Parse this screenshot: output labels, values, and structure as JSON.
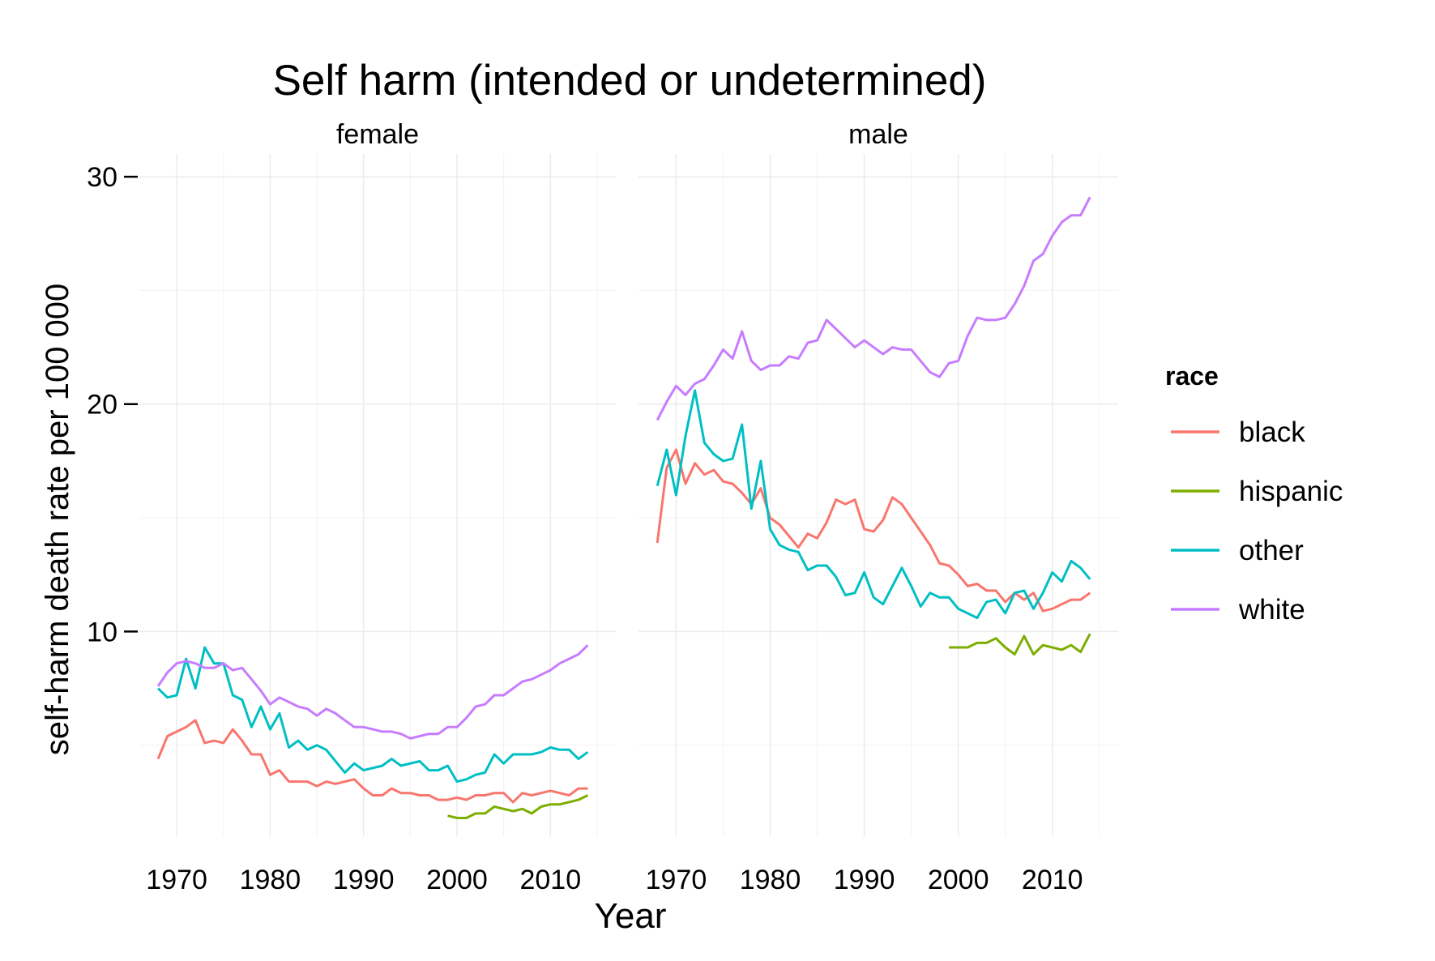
{
  "chart_data": {
    "type": "line",
    "title": "Self harm (intended or undetermined)",
    "xlabel": "Year",
    "ylabel": "self-harm death rate per 100 000",
    "xlim": [
      1966,
      2017
    ],
    "ylim": [
      1,
      31
    ],
    "x_ticks": [
      1970,
      1980,
      1990,
      2000,
      2010
    ],
    "x_tick_labels": [
      "1970",
      "1980",
      "1990",
      "2000",
      "2010"
    ],
    "y_ticks": [
      10,
      20,
      30
    ],
    "y_tick_labels": [
      "10",
      "20",
      "30"
    ],
    "grid": true,
    "legend": {
      "title": "race",
      "placement": "right",
      "entries": [
        {
          "key": "black",
          "label": "black",
          "color": "#F8766D"
        },
        {
          "key": "hispanic",
          "label": "hispanic",
          "color": "#7CAE00"
        },
        {
          "key": "other",
          "label": "other",
          "color": "#00BFC4"
        },
        {
          "key": "white",
          "label": "white",
          "color": "#C77CFF"
        }
      ]
    },
    "panels": [
      {
        "name": "female",
        "series": [
          {
            "key": "black",
            "x": [
              1968,
              1969,
              1970,
              1971,
              1972,
              1973,
              1974,
              1975,
              1976,
              1977,
              1978,
              1979,
              1980,
              1981,
              1982,
              1983,
              1984,
              1985,
              1986,
              1987,
              1988,
              1989,
              1990,
              1991,
              1992,
              1993,
              1994,
              1995,
              1996,
              1997,
              1998,
              1999,
              2000,
              2001,
              2002,
              2003,
              2004,
              2005,
              2006,
              2007,
              2008,
              2009,
              2010,
              2011,
              2012,
              2013,
              2014
            ],
            "values": [
              4.4,
              5.4,
              5.6,
              5.8,
              6.1,
              5.1,
              5.2,
              5.1,
              5.7,
              5.2,
              4.6,
              4.6,
              3.7,
              3.9,
              3.4,
              3.4,
              3.4,
              3.2,
              3.4,
              3.3,
              3.4,
              3.5,
              3.1,
              2.8,
              2.8,
              3.1,
              2.9,
              2.9,
              2.8,
              2.8,
              2.6,
              2.6,
              2.7,
              2.6,
              2.8,
              2.8,
              2.9,
              2.9,
              2.5,
              2.9,
              2.8,
              2.9,
              3.0,
              2.9,
              2.8,
              3.1,
              3.1
            ]
          },
          {
            "key": "hispanic",
            "x": [
              1999,
              2000,
              2001,
              2002,
              2003,
              2004,
              2005,
              2006,
              2007,
              2008,
              2009,
              2010,
              2011,
              2012,
              2013,
              2014
            ],
            "values": [
              1.9,
              1.8,
              1.8,
              2.0,
              2.0,
              2.3,
              2.2,
              2.1,
              2.2,
              2.0,
              2.3,
              2.4,
              2.4,
              2.5,
              2.6,
              2.8
            ]
          },
          {
            "key": "other",
            "x": [
              1968,
              1969,
              1970,
              1971,
              1972,
              1973,
              1974,
              1975,
              1976,
              1977,
              1978,
              1979,
              1980,
              1981,
              1982,
              1983,
              1984,
              1985,
              1986,
              1987,
              1988,
              1989,
              1990,
              1991,
              1992,
              1993,
              1994,
              1995,
              1996,
              1997,
              1998,
              1999,
              2000,
              2001,
              2002,
              2003,
              2004,
              2005,
              2006,
              2007,
              2008,
              2009,
              2010,
              2011,
              2012,
              2013,
              2014
            ],
            "values": [
              7.5,
              7.1,
              7.2,
              8.8,
              7.5,
              9.3,
              8.6,
              8.6,
              7.2,
              7.0,
              5.8,
              6.7,
              5.7,
              6.4,
              4.9,
              5.2,
              4.8,
              5.0,
              4.8,
              4.3,
              3.8,
              4.2,
              3.9,
              4.0,
              4.1,
              4.4,
              4.1,
              4.2,
              4.3,
              3.9,
              3.9,
              4.1,
              3.4,
              3.5,
              3.7,
              3.8,
              4.6,
              4.2,
              4.6,
              4.6,
              4.6,
              4.7,
              4.9,
              4.8,
              4.8,
              4.4,
              4.7
            ]
          },
          {
            "key": "white",
            "x": [
              1968,
              1969,
              1970,
              1971,
              1972,
              1973,
              1974,
              1975,
              1976,
              1977,
              1978,
              1979,
              1980,
              1981,
              1982,
              1983,
              1984,
              1985,
              1986,
              1987,
              1988,
              1989,
              1990,
              1991,
              1992,
              1993,
              1994,
              1995,
              1996,
              1997,
              1998,
              1999,
              2000,
              2001,
              2002,
              2003,
              2004,
              2005,
              2006,
              2007,
              2008,
              2009,
              2010,
              2011,
              2012,
              2013,
              2014
            ],
            "values": [
              7.6,
              8.2,
              8.6,
              8.7,
              8.6,
              8.4,
              8.4,
              8.6,
              8.3,
              8.4,
              7.9,
              7.4,
              6.8,
              7.1,
              6.9,
              6.7,
              6.6,
              6.3,
              6.6,
              6.4,
              6.1,
              5.8,
              5.8,
              5.7,
              5.6,
              5.6,
              5.5,
              5.3,
              5.4,
              5.5,
              5.5,
              5.8,
              5.8,
              6.2,
              6.7,
              6.8,
              7.2,
              7.2,
              7.5,
              7.8,
              7.9,
              8.1,
              8.3,
              8.6,
              8.8,
              9.0,
              9.4
            ]
          }
        ]
      },
      {
        "name": "male",
        "series": [
          {
            "key": "black",
            "x": [
              1968,
              1969,
              1970,
              1971,
              1972,
              1973,
              1974,
              1975,
              1976,
              1977,
              1978,
              1979,
              1980,
              1981,
              1982,
              1983,
              1984,
              1985,
              1986,
              1987,
              1988,
              1989,
              1990,
              1991,
              1992,
              1993,
              1994,
              1995,
              1996,
              1997,
              1998,
              1999,
              2000,
              2001,
              2002,
              2003,
              2004,
              2005,
              2006,
              2007,
              2008,
              2009,
              2010,
              2011,
              2012,
              2013,
              2014
            ],
            "values": [
              13.9,
              17.2,
              18.0,
              16.5,
              17.4,
              16.9,
              17.1,
              16.6,
              16.5,
              16.1,
              15.6,
              16.3,
              15.0,
              14.7,
              14.2,
              13.7,
              14.3,
              14.1,
              14.8,
              15.8,
              15.6,
              15.8,
              14.5,
              14.4,
              14.9,
              15.9,
              15.6,
              15.0,
              14.4,
              13.8,
              13.0,
              12.9,
              12.5,
              12.0,
              12.1,
              11.8,
              11.8,
              11.3,
              11.7,
              11.4,
              11.7,
              10.9,
              11.0,
              11.2,
              11.4,
              11.4,
              11.7
            ]
          },
          {
            "key": "hispanic",
            "x": [
              1999,
              2000,
              2001,
              2002,
              2003,
              2004,
              2005,
              2006,
              2007,
              2008,
              2009,
              2010,
              2011,
              2012,
              2013,
              2014
            ],
            "values": [
              9.3,
              9.3,
              9.3,
              9.5,
              9.5,
              9.7,
              9.3,
              9.0,
              9.8,
              9.0,
              9.4,
              9.3,
              9.2,
              9.4,
              9.1,
              9.9
            ]
          },
          {
            "key": "other",
            "x": [
              1968,
              1969,
              1970,
              1971,
              1972,
              1973,
              1974,
              1975,
              1976,
              1977,
              1978,
              1979,
              1980,
              1981,
              1982,
              1983,
              1984,
              1985,
              1986,
              1987,
              1988,
              1989,
              1990,
              1991,
              1992,
              1993,
              1994,
              1995,
              1996,
              1997,
              1998,
              1999,
              2000,
              2001,
              2002,
              2003,
              2004,
              2005,
              2006,
              2007,
              2008,
              2009,
              2010,
              2011,
              2012,
              2013,
              2014
            ],
            "values": [
              16.4,
              18.0,
              16.0,
              18.6,
              20.6,
              18.3,
              17.8,
              17.5,
              17.6,
              19.1,
              15.4,
              17.5,
              14.5,
              13.8,
              13.6,
              13.5,
              12.7,
              12.9,
              12.9,
              12.4,
              11.6,
              11.7,
              12.6,
              11.5,
              11.2,
              12.0,
              12.8,
              12.0,
              11.1,
              11.7,
              11.5,
              11.5,
              11.0,
              10.8,
              10.6,
              11.3,
              11.4,
              10.8,
              11.7,
              11.8,
              11.0,
              11.7,
              12.6,
              12.2,
              13.1,
              12.8,
              12.3
            ]
          },
          {
            "key": "white",
            "x": [
              1968,
              1969,
              1970,
              1971,
              1972,
              1973,
              1974,
              1975,
              1976,
              1977,
              1978,
              1979,
              1980,
              1981,
              1982,
              1983,
              1984,
              1985,
              1986,
              1987,
              1988,
              1989,
              1990,
              1991,
              1992,
              1993,
              1994,
              1995,
              1996,
              1997,
              1998,
              1999,
              2000,
              2001,
              2002,
              2003,
              2004,
              2005,
              2006,
              2007,
              2008,
              2009,
              2010,
              2011,
              2012,
              2013,
              2014
            ],
            "values": [
              19.3,
              20.1,
              20.8,
              20.4,
              20.9,
              21.1,
              21.7,
              22.4,
              22.0,
              23.2,
              21.9,
              21.5,
              21.7,
              21.7,
              22.1,
              22.0,
              22.7,
              22.8,
              23.7,
              23.3,
              22.9,
              22.5,
              22.8,
              22.5,
              22.2,
              22.5,
              22.4,
              22.4,
              21.9,
              21.4,
              21.2,
              21.8,
              21.9,
              23.0,
              23.8,
              23.7,
              23.7,
              23.8,
              24.4,
              25.2,
              26.3,
              26.6,
              27.4,
              28.0,
              28.3,
              28.3,
              29.1
            ]
          }
        ]
      }
    ]
  }
}
